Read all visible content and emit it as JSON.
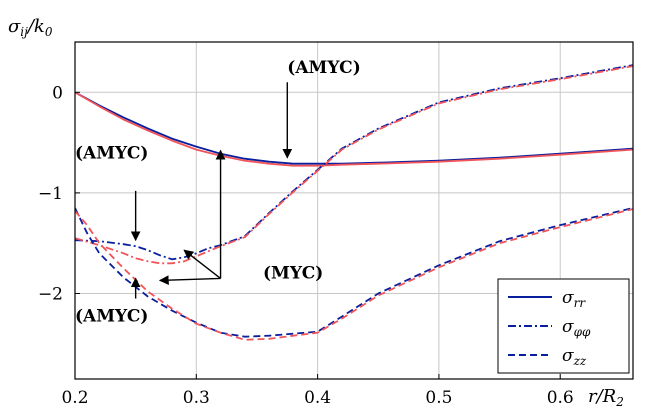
{
  "chart_data": {
    "type": "line",
    "ylabel": "σ_ij/k_0",
    "ylabel_parts": {
      "sigma": "σ",
      "sub": "ij",
      "slash": "/k",
      "sub2": "0"
    },
    "xlabel": "r/R_2",
    "xlabel_parts": {
      "r": "r/R",
      "sub": "2"
    },
    "xlim": [
      0.2,
      0.66
    ],
    "ylim": [
      -2.85,
      0.5
    ],
    "xticks": [
      0.2,
      0.3,
      0.4,
      0.5,
      0.6
    ],
    "yticks": [
      0,
      -1,
      -2
    ],
    "xtick_labels": [
      "0.2",
      "0.3",
      "0.4",
      "0.5",
      "0.6"
    ],
    "ytick_labels": [
      "0",
      "−1",
      "−2"
    ],
    "grid": true,
    "legend_position": "bottom-right",
    "colors": {
      "amyc": "#0a1f9e",
      "myc": "#f0555a"
    },
    "legend": [
      {
        "label": "σrr",
        "main": "σ",
        "sub": "rr",
        "dash": "solid"
      },
      {
        "label": "σφφ",
        "main": "σ",
        "sub": "φφ",
        "dash": "dashdot"
      },
      {
        "label": "σzz",
        "main": "σ",
        "sub": "zz",
        "dash": "dashed"
      }
    ],
    "series": [
      {
        "component": "rr",
        "model": "AMYC",
        "color": "#0a1f9e",
        "dash": "solid",
        "x": [
          0.2,
          0.22,
          0.24,
          0.26,
          0.28,
          0.3,
          0.32,
          0.34,
          0.36,
          0.38,
          0.4,
          0.42,
          0.45,
          0.5,
          0.55,
          0.6,
          0.66
        ],
        "y": [
          0,
          -0.13,
          -0.25,
          -0.36,
          -0.46,
          -0.54,
          -0.61,
          -0.66,
          -0.69,
          -0.71,
          -0.71,
          -0.71,
          -0.7,
          -0.68,
          -0.65,
          -0.61,
          -0.56
        ]
      },
      {
        "component": "rr",
        "model": "MYC",
        "color": "#f0555a",
        "dash": "solid",
        "x": [
          0.2,
          0.22,
          0.24,
          0.26,
          0.28,
          0.3,
          0.32,
          0.34,
          0.36,
          0.38,
          0.4,
          0.42,
          0.45,
          0.5,
          0.55,
          0.6,
          0.66
        ],
        "y": [
          0,
          -0.14,
          -0.27,
          -0.38,
          -0.48,
          -0.57,
          -0.63,
          -0.68,
          -0.71,
          -0.73,
          -0.73,
          -0.72,
          -0.71,
          -0.69,
          -0.66,
          -0.62,
          -0.57
        ]
      },
      {
        "component": "φφ",
        "model": "AMYC",
        "color": "#0a1f9e",
        "dash": "dashdot",
        "x": [
          0.2,
          0.22,
          0.24,
          0.25,
          0.26,
          0.27,
          0.28,
          0.29,
          0.3,
          0.31,
          0.32,
          0.34,
          0.36,
          0.38,
          0.4,
          0.42,
          0.45,
          0.5,
          0.55,
          0.6,
          0.66
        ],
        "y": [
          -1.47,
          -1.48,
          -1.51,
          -1.53,
          -1.57,
          -1.62,
          -1.66,
          -1.64,
          -1.6,
          -1.55,
          -1.52,
          -1.43,
          -1.2,
          -0.98,
          -0.77,
          -0.56,
          -0.36,
          -0.1,
          0.04,
          0.14,
          0.27
        ]
      },
      {
        "component": "φφ",
        "model": "MYC",
        "color": "#f0555a",
        "dash": "dashdot",
        "x": [
          0.2,
          0.22,
          0.24,
          0.25,
          0.26,
          0.27,
          0.28,
          0.29,
          0.3,
          0.31,
          0.32,
          0.34,
          0.36,
          0.38,
          0.4,
          0.42,
          0.45,
          0.5,
          0.55,
          0.6,
          0.66
        ],
        "y": [
          -1.45,
          -1.52,
          -1.6,
          -1.65,
          -1.68,
          -1.7,
          -1.7,
          -1.68,
          -1.63,
          -1.58,
          -1.53,
          -1.44,
          -1.21,
          -0.99,
          -0.78,
          -0.57,
          -0.37,
          -0.11,
          0.03,
          0.13,
          0.26
        ]
      },
      {
        "component": "zz",
        "model": "AMYC",
        "color": "#0a1f9e",
        "dash": "dashed",
        "x": [
          0.2,
          0.21,
          0.22,
          0.24,
          0.26,
          0.28,
          0.3,
          0.32,
          0.34,
          0.36,
          0.38,
          0.4,
          0.42,
          0.45,
          0.5,
          0.55,
          0.6,
          0.66
        ],
        "y": [
          -1.15,
          -1.4,
          -1.6,
          -1.84,
          -2.03,
          -2.17,
          -2.29,
          -2.39,
          -2.43,
          -2.42,
          -2.4,
          -2.38,
          -2.23,
          -2.0,
          -1.72,
          -1.48,
          -1.32,
          -1.15
        ]
      },
      {
        "component": "zz",
        "model": "MYC",
        "color": "#f0555a",
        "dash": "dashed",
        "x": [
          0.2,
          0.21,
          0.22,
          0.24,
          0.26,
          0.28,
          0.3,
          0.32,
          0.34,
          0.36,
          0.38,
          0.4,
          0.42,
          0.45,
          0.5,
          0.55,
          0.6,
          0.66
        ],
        "y": [
          -1.18,
          -1.32,
          -1.5,
          -1.75,
          -1.98,
          -2.15,
          -2.3,
          -2.39,
          -2.46,
          -2.45,
          -2.42,
          -2.39,
          -2.25,
          -2.02,
          -1.74,
          -1.5,
          -1.34,
          -1.16
        ]
      }
    ],
    "annotations": [
      {
        "label": "(AMYC)",
        "text_at": [
          0.375,
          0.19
        ],
        "arrows": [
          {
            "from": [
              0.375,
              0.1
            ],
            "to": [
              0.375,
              -0.65
            ]
          }
        ]
      },
      {
        "label": "(AMYC)",
        "text_at": [
          0.2,
          -0.66
        ],
        "arrows": [
          {
            "from": [
              0.25,
              -0.98
            ],
            "to": [
              0.25,
              -1.47
            ]
          }
        ]
      },
      {
        "label": "(MYC)",
        "text_at": [
          0.355,
          -1.85
        ],
        "arrows": [
          {
            "from": [
              0.32,
              -1.85
            ],
            "to": [
              0.32,
              -0.58
            ]
          },
          {
            "from": [
              0.32,
              -1.85
            ],
            "to": [
              0.29,
              -1.57
            ]
          },
          {
            "from": [
              0.32,
              -1.85
            ],
            "to": [
              0.27,
              -1.87
            ]
          }
        ]
      },
      {
        "label": "(AMYC)",
        "text_at": [
          0.2,
          -2.28
        ],
        "arrows": [
          {
            "from": [
              0.25,
              -2.05
            ],
            "to": [
              0.25,
              -1.85
            ]
          }
        ]
      }
    ]
  }
}
